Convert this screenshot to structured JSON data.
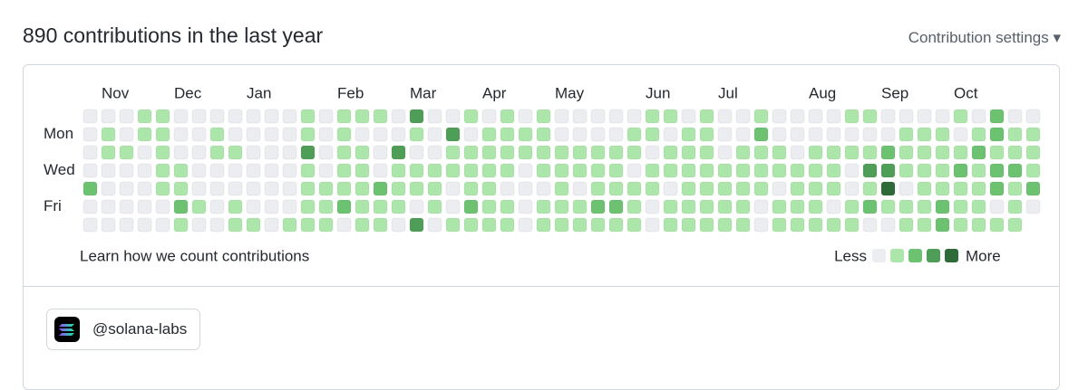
{
  "header": {
    "title": "890 contributions in the last year",
    "settings": "Contribution settings"
  },
  "graph": {
    "months": [
      {
        "label": "Nov",
        "week": 1
      },
      {
        "label": "Dec",
        "week": 5
      },
      {
        "label": "Jan",
        "week": 9
      },
      {
        "label": "Feb",
        "week": 14
      },
      {
        "label": "Mar",
        "week": 18
      },
      {
        "label": "Apr",
        "week": 22
      },
      {
        "label": "May",
        "week": 26
      },
      {
        "label": "Jun",
        "week": 31
      },
      {
        "label": "Jul",
        "week": 35
      },
      {
        "label": "Aug",
        "week": 40
      },
      {
        "label": "Sep",
        "week": 44
      },
      {
        "label": "Oct",
        "week": 48
      }
    ],
    "days": [
      {
        "label": "Mon",
        "row": 1
      },
      {
        "label": "Wed",
        "row": 3
      },
      {
        "label": "Fri",
        "row": 5
      }
    ],
    "level_colors": [
      "#ebedf0",
      "#ace6aa",
      "#6cc270",
      "#4f9e58",
      "#2f6a39"
    ],
    "rows": [
      [
        0,
        0,
        0,
        1,
        1,
        0,
        0,
        0,
        0,
        0,
        0,
        0,
        1,
        0,
        1,
        1,
        1,
        0,
        3,
        0,
        0,
        1,
        0,
        1,
        0,
        1,
        0,
        0,
        0,
        0,
        0,
        1,
        1,
        0,
        1,
        0,
        0,
        1,
        0,
        0,
        0,
        0,
        1,
        1,
        0,
        0,
        0,
        0,
        1,
        0,
        2,
        0,
        0
      ],
      [
        0,
        1,
        0,
        1,
        1,
        0,
        0,
        1,
        0,
        0,
        0,
        0,
        1,
        0,
        1,
        0,
        0,
        0,
        1,
        0,
        3,
        0,
        1,
        1,
        1,
        1,
        0,
        0,
        0,
        0,
        1,
        1,
        0,
        1,
        1,
        0,
        0,
        2,
        0,
        0,
        0,
        0,
        0,
        0,
        0,
        1,
        1,
        1,
        0,
        1,
        2,
        1,
        1
      ],
      [
        0,
        1,
        1,
        0,
        1,
        0,
        0,
        1,
        1,
        0,
        0,
        0,
        3,
        0,
        1,
        1,
        0,
        3,
        0,
        0,
        1,
        1,
        1,
        1,
        1,
        1,
        1,
        1,
        1,
        1,
        1,
        0,
        1,
        1,
        1,
        0,
        1,
        1,
        1,
        0,
        1,
        1,
        1,
        1,
        2,
        1,
        1,
        1,
        1,
        2,
        1,
        1,
        1
      ],
      [
        0,
        0,
        0,
        0,
        1,
        1,
        0,
        0,
        0,
        0,
        0,
        0,
        1,
        0,
        1,
        1,
        0,
        1,
        1,
        1,
        1,
        1,
        1,
        1,
        0,
        1,
        1,
        1,
        1,
        1,
        0,
        1,
        1,
        1,
        1,
        1,
        1,
        1,
        1,
        1,
        1,
        1,
        0,
        3,
        3,
        1,
        1,
        1,
        2,
        1,
        2,
        2,
        1
      ],
      [
        2,
        0,
        0,
        0,
        1,
        1,
        0,
        0,
        0,
        0,
        0,
        0,
        1,
        1,
        1,
        1,
        2,
        1,
        1,
        1,
        0,
        1,
        1,
        0,
        0,
        0,
        1,
        0,
        1,
        1,
        1,
        1,
        0,
        1,
        1,
        1,
        1,
        1,
        0,
        1,
        1,
        1,
        0,
        1,
        4,
        0,
        1,
        1,
        1,
        1,
        2,
        1,
        2
      ],
      [
        0,
        0,
        0,
        0,
        0,
        2,
        1,
        0,
        1,
        0,
        0,
        0,
        1,
        1,
        2,
        1,
        1,
        1,
        0,
        1,
        0,
        2,
        1,
        1,
        0,
        1,
        1,
        1,
        2,
        2,
        1,
        0,
        1,
        1,
        1,
        1,
        1,
        0,
        1,
        1,
        1,
        0,
        1,
        2,
        1,
        1,
        1,
        2,
        1,
        1,
        0,
        1,
        0
      ],
      [
        0,
        0,
        0,
        0,
        0,
        1,
        0,
        0,
        1,
        1,
        0,
        1,
        1,
        1,
        0,
        1,
        1,
        0,
        3,
        0,
        1,
        1,
        1,
        1,
        0,
        1,
        1,
        1,
        1,
        1,
        1,
        0,
        1,
        1,
        1,
        1,
        1,
        0,
        1,
        1,
        1,
        1,
        1,
        0,
        0,
        1,
        1,
        2,
        1,
        1,
        1,
        1,
        null
      ]
    ],
    "learn": "Learn how we count contributions",
    "legend": {
      "less": "Less",
      "more": "More",
      "levels": [
        0,
        1,
        2,
        3,
        4
      ]
    }
  },
  "organization": {
    "handle": "@solana-labs"
  }
}
